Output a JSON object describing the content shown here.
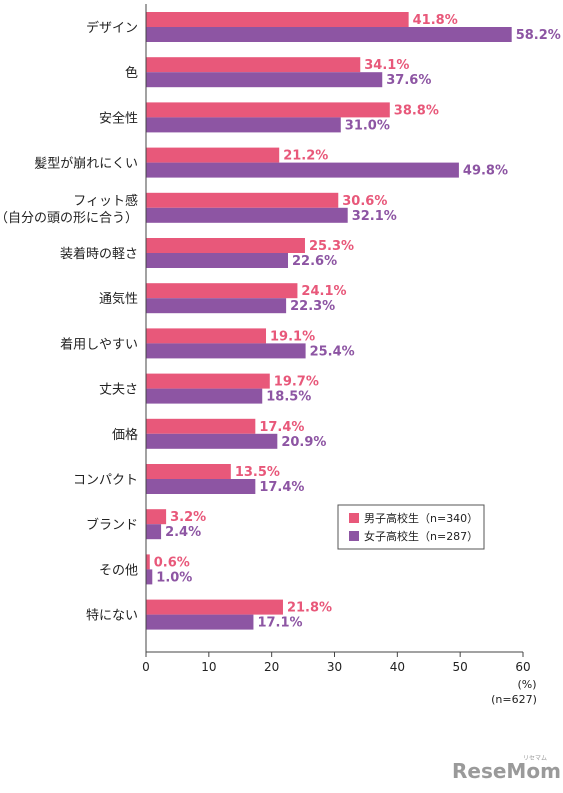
{
  "chart_data": {
    "type": "bar",
    "orientation": "horizontal",
    "categories": [
      [
        "デザイン"
      ],
      [
        "色"
      ],
      [
        "安全性"
      ],
      [
        "髪型が崩れにくい"
      ],
      [
        "フィット感",
        "（自分の頭の形に合う）"
      ],
      [
        "装着時の軽さ"
      ],
      [
        "通気性"
      ],
      [
        "着用しやすい"
      ],
      [
        "丈夫さ"
      ],
      [
        "価格"
      ],
      [
        "コンパクト"
      ],
      [
        "ブランド"
      ],
      [
        "その他"
      ],
      [
        "特にない"
      ]
    ],
    "series": [
      {
        "name": "男子高校生（n=340）",
        "color": "#e8587a",
        "values": [
          41.8,
          34.1,
          38.8,
          21.2,
          30.6,
          25.3,
          24.1,
          19.1,
          19.7,
          17.4,
          13.5,
          3.2,
          0.6,
          21.8
        ],
        "labels": [
          "41.8%",
          "34.1%",
          "38.8%",
          "21.2%",
          "30.6%",
          "25.3%",
          "24.1%",
          "19.1%",
          "19.7%",
          "17.4%",
          "13.5%",
          "3.2%",
          "0.6%",
          "21.8%"
        ]
      },
      {
        "name": "女子高校生（n=287）",
        "color": "#8d55a3",
        "values": [
          58.2,
          37.6,
          31.0,
          49.8,
          32.1,
          22.6,
          22.3,
          25.4,
          18.5,
          20.9,
          17.4,
          2.4,
          1.0,
          17.1
        ],
        "labels": [
          "58.2%",
          "37.6%",
          "31.0%",
          "49.8%",
          "32.1%",
          "22.6%",
          "22.3%",
          "25.4%",
          "18.5%",
          "20.9%",
          "17.4%",
          "2.4%",
          "1.0%",
          "17.1%"
        ]
      }
    ],
    "xlim": [
      0,
      60
    ],
    "xticks": [
      "0",
      "10",
      "20",
      "30",
      "40",
      "50",
      "60"
    ],
    "xunit": "(%)",
    "sample_note": "(n=627)",
    "legend_position": "right-middle",
    "grid": false
  },
  "logo": {
    "text": "ReseMom",
    "small_text": "リセマム"
  }
}
